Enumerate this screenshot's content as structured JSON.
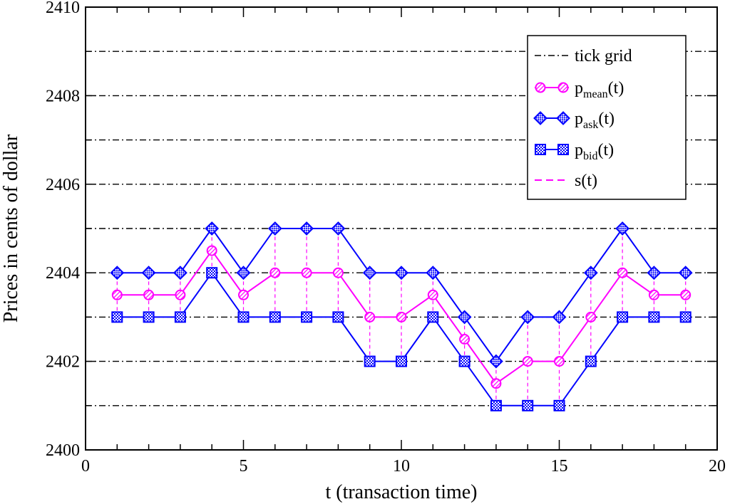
{
  "chart_data": {
    "type": "line",
    "title": "",
    "xlabel": "t (transaction time)",
    "ylabel": "Prices in cents of dollar",
    "xlim": [
      0,
      20
    ],
    "ylim": [
      2400,
      2410
    ],
    "x_ticks": [
      0,
      5,
      10,
      15,
      20
    ],
    "x_minor_step": 1,
    "y_ticks": [
      2400,
      2402,
      2404,
      2406,
      2408,
      2410
    ],
    "y_minor_step": 1,
    "grid": {
      "axis": "y",
      "values": [
        2401,
        2402,
        2403,
        2404,
        2405,
        2406,
        2407,
        2408,
        2409
      ],
      "style": "dash-dot",
      "color": "#000000"
    },
    "legend_position": "top-right",
    "legend": [
      {
        "key": "grid",
        "label": "tick grid"
      },
      {
        "key": "mean",
        "label": "p",
        "sub": "mean",
        "suffix": "(t)"
      },
      {
        "key": "ask",
        "label": "p",
        "sub": "ask",
        "suffix": "(t)"
      },
      {
        "key": "bid",
        "label": "p",
        "sub": "bid",
        "suffix": "(t)"
      },
      {
        "key": "spread",
        "label": "s(t)"
      }
    ],
    "x": [
      1,
      2,
      3,
      4,
      5,
      6,
      7,
      8,
      9,
      10,
      11,
      12,
      13,
      14,
      15,
      16,
      17,
      18,
      19
    ],
    "series": [
      {
        "key": "mean",
        "color": "#ff00ff",
        "marker": "circle",
        "values": [
          2403.5,
          2403.5,
          2403.5,
          2404.5,
          2403.5,
          2404,
          2404,
          2404,
          2403,
          2403,
          2403.5,
          2402.5,
          2401.5,
          2402,
          2402,
          2403,
          2404,
          2403.5,
          2403.5
        ]
      },
      {
        "key": "ask",
        "color": "#0000ff",
        "marker": "diamond",
        "values": [
          2404,
          2404,
          2404,
          2405,
          2404,
          2405,
          2405,
          2405,
          2404,
          2404,
          2404,
          2403,
          2402,
          2403,
          2403,
          2404,
          2405,
          2404,
          2404
        ]
      },
      {
        "key": "bid",
        "color": "#0000ff",
        "marker": "square",
        "values": [
          2403,
          2403,
          2403,
          2404,
          2403,
          2403,
          2403,
          2403,
          2402,
          2402,
          2403,
          2402,
          2401,
          2401,
          2401,
          2402,
          2403,
          2403,
          2403
        ]
      }
    ],
    "spread": {
      "color": "#ff00ff",
      "style": "dashed",
      "from_series": "bid",
      "to_series": "ask"
    }
  }
}
